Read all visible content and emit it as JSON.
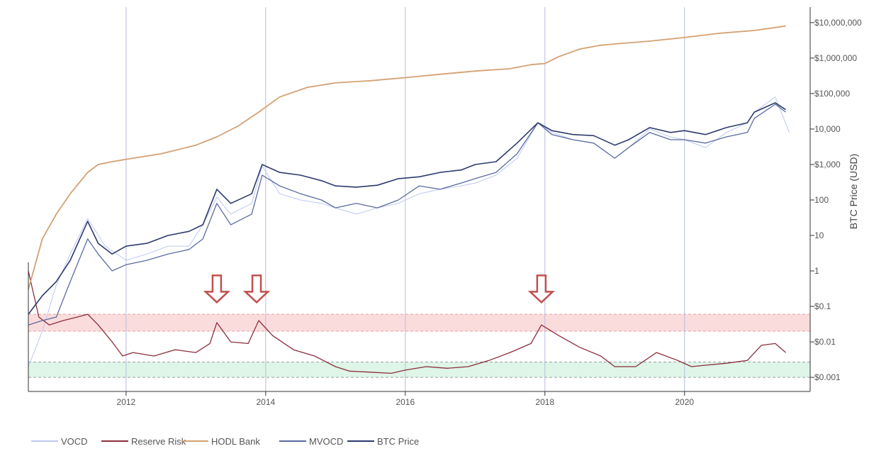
{
  "chart_data": {
    "type": "line",
    "title": "",
    "xlabel": "",
    "ylabel": "BTC Price (USD)",
    "x_range": [
      2010.6,
      2021.8
    ],
    "x_ticks": [
      {
        "value": 2012,
        "label": "2012"
      },
      {
        "value": 2014,
        "label": "2014"
      },
      {
        "value": 2016,
        "label": "2016"
      },
      {
        "value": 2018,
        "label": "2018"
      },
      {
        "value": 2020,
        "label": "2020"
      }
    ],
    "y_scale": "log",
    "y_range": [
      0.0004,
      30000000
    ],
    "y_ticks": [
      {
        "value": 10000000,
        "label": "$10,000,000"
      },
      {
        "value": 1000000,
        "label": "$1,000,000"
      },
      {
        "value": 100000,
        "label": "$100,000"
      },
      {
        "value": 10000,
        "label": "10,000"
      },
      {
        "value": 1000,
        "label": "$1,000"
      },
      {
        "value": 100,
        "label": "100"
      },
      {
        "value": 10,
        "label": "10"
      },
      {
        "value": 1,
        "label": "1"
      },
      {
        "value": 0.1,
        "label": "$0.1"
      },
      {
        "value": 0.01,
        "label": "$0.01"
      },
      {
        "value": 0.001,
        "label": "$0.001"
      }
    ],
    "grid": {
      "vertical": true,
      "horizontal": false
    },
    "bands": [
      {
        "from": 0.02,
        "to": 0.06,
        "color": "#fbdcdc",
        "line_color": "#e7a0a0"
      },
      {
        "from": 0.001,
        "to": 0.0027,
        "color": "#def5e8",
        "line_color": "#9aa0a0"
      }
    ],
    "arrows": [
      {
        "x": 2013.3,
        "y": 0.13
      },
      {
        "x": 2013.87,
        "y": 0.13
      },
      {
        "x": 2017.95,
        "y": 0.13
      }
    ],
    "arrow_color": "#c0504d",
    "legend_position": "bottom-left",
    "series": [
      {
        "name": "VOCD",
        "color": "#bcc8f2",
        "x": [
          2010.6,
          2010.8,
          2011.0,
          2011.2,
          2011.45,
          2011.7,
          2012.0,
          2012.3,
          2012.6,
          2012.9,
          2013.1,
          2013.3,
          2013.5,
          2013.8,
          2013.95,
          2014.2,
          2014.5,
          2014.8,
          2015.0,
          2015.3,
          2015.6,
          2015.9,
          2016.2,
          2016.5,
          2016.8,
          2017.0,
          2017.3,
          2017.6,
          2017.9,
          2018.1,
          2018.4,
          2018.7,
          2019.0,
          2019.2,
          2019.5,
          2019.8,
          2020.0,
          2020.3,
          2020.6,
          2020.9,
          2021.0,
          2021.3,
          2021.5
        ],
        "values": [
          0.002,
          0.02,
          0.4,
          3,
          30,
          5,
          2,
          3,
          5,
          5,
          20,
          120,
          40,
          80,
          900,
          150,
          100,
          80,
          60,
          40,
          60,
          80,
          150,
          200,
          250,
          300,
          500,
          1500,
          15000,
          8000,
          5000,
          4000,
          1500,
          3000,
          10000,
          6000,
          5000,
          3000,
          8000,
          15000,
          30000,
          80000,
          8000
        ]
      },
      {
        "name": "Reserve Risk",
        "color": "#8b2e3a",
        "x": [
          2010.6,
          2010.75,
          2010.9,
          2011.1,
          2011.3,
          2011.45,
          2011.6,
          2011.8,
          2011.95,
          2012.1,
          2012.4,
          2012.7,
          2013.0,
          2013.2,
          2013.3,
          2013.5,
          2013.75,
          2013.9,
          2014.1,
          2014.4,
          2014.7,
          2015.0,
          2015.2,
          2015.5,
          2015.8,
          2016.0,
          2016.3,
          2016.6,
          2016.9,
          2017.2,
          2017.5,
          2017.8,
          2017.95,
          2018.2,
          2018.5,
          2018.8,
          2019.0,
          2019.3,
          2019.6,
          2019.9,
          2020.1,
          2020.3,
          2020.6,
          2020.9,
          2021.1,
          2021.3,
          2021.45
        ],
        "values": [
          1,
          0.05,
          0.03,
          0.04,
          0.05,
          0.06,
          0.03,
          0.01,
          0.004,
          0.005,
          0.004,
          0.006,
          0.005,
          0.009,
          0.035,
          0.01,
          0.009,
          0.04,
          0.015,
          0.006,
          0.004,
          0.002,
          0.0015,
          0.0014,
          0.0013,
          0.0016,
          0.002,
          0.0018,
          0.002,
          0.003,
          0.005,
          0.009,
          0.03,
          0.015,
          0.007,
          0.004,
          0.002,
          0.002,
          0.005,
          0.003,
          0.002,
          0.0022,
          0.0025,
          0.003,
          0.008,
          0.009,
          0.005
        ]
      },
      {
        "name": "HODL Bank",
        "color": "#d4a072",
        "x": [
          2010.6,
          2010.8,
          2011.0,
          2011.2,
          2011.45,
          2011.6,
          2011.8,
          2012.0,
          2012.5,
          2013.0,
          2013.3,
          2013.6,
          2013.9,
          2014.2,
          2014.6,
          2015.0,
          2015.5,
          2016.0,
          2016.5,
          2017.0,
          2017.5,
          2017.8,
          2018.0,
          2018.2,
          2018.5,
          2018.8,
          2019.0,
          2019.5,
          2020.0,
          2020.5,
          2021.0,
          2021.45
        ],
        "values": [
          0.3,
          8,
          40,
          150,
          600,
          1000,
          1200,
          1400,
          2000,
          3500,
          6000,
          12000,
          30000,
          80000,
          150000,
          200000,
          230000,
          280000,
          350000,
          430000,
          500000,
          650000,
          700000,
          1100000,
          1800000,
          2300000,
          2500000,
          3000000,
          3800000,
          5000000,
          6000000,
          8000000
        ]
      },
      {
        "name": "MVOCD",
        "color": "#5a6aa0",
        "x": [
          2010.6,
          2010.8,
          2011.0,
          2011.2,
          2011.45,
          2011.6,
          2011.8,
          2012.0,
          2012.3,
          2012.6,
          2012.9,
          2013.1,
          2013.3,
          2013.5,
          2013.8,
          2013.95,
          2014.2,
          2014.5,
          2014.8,
          2015.0,
          2015.3,
          2015.6,
          2015.9,
          2016.2,
          2016.5,
          2016.8,
          2017.0,
          2017.3,
          2017.6,
          2017.9,
          2018.1,
          2018.4,
          2018.7,
          2019.0,
          2019.2,
          2019.5,
          2019.8,
          2020.0,
          2020.3,
          2020.6,
          2020.9,
          2021.0,
          2021.3,
          2021.45
        ],
        "values": [
          0.03,
          0.04,
          0.05,
          0.5,
          8,
          3,
          1,
          1.5,
          2,
          3,
          4,
          8,
          80,
          20,
          40,
          500,
          250,
          150,
          100,
          60,
          80,
          60,
          100,
          250,
          200,
          300,
          400,
          600,
          2000,
          15000,
          7000,
          5000,
          4000,
          1500,
          3000,
          8000,
          5000,
          5000,
          4000,
          6000,
          8000,
          20000,
          50000,
          30000
        ]
      },
      {
        "name": "BTC Price",
        "color": "#2e3a6e",
        "x": [
          2010.6,
          2010.8,
          2011.0,
          2011.2,
          2011.45,
          2011.6,
          2011.8,
          2012.0,
          2012.3,
          2012.6,
          2012.9,
          2013.1,
          2013.3,
          2013.5,
          2013.8,
          2013.95,
          2014.2,
          2014.5,
          2014.8,
          2015.0,
          2015.3,
          2015.6,
          2015.9,
          2016.2,
          2016.5,
          2016.8,
          2017.0,
          2017.3,
          2017.6,
          2017.9,
          2018.1,
          2018.4,
          2018.7,
          2019.0,
          2019.2,
          2019.5,
          2019.8,
          2020.0,
          2020.3,
          2020.6,
          2020.9,
          2021.0,
          2021.3,
          2021.45
        ],
        "values": [
          0.06,
          0.2,
          0.5,
          2,
          25,
          6,
          3,
          5,
          6,
          10,
          13,
          20,
          200,
          80,
          150,
          1000,
          600,
          500,
          350,
          250,
          230,
          260,
          400,
          450,
          600,
          700,
          1000,
          1200,
          4000,
          15000,
          9000,
          7000,
          6500,
          3500,
          5000,
          11000,
          8000,
          9000,
          7000,
          11000,
          15000,
          30000,
          55000,
          35000
        ]
      }
    ]
  }
}
